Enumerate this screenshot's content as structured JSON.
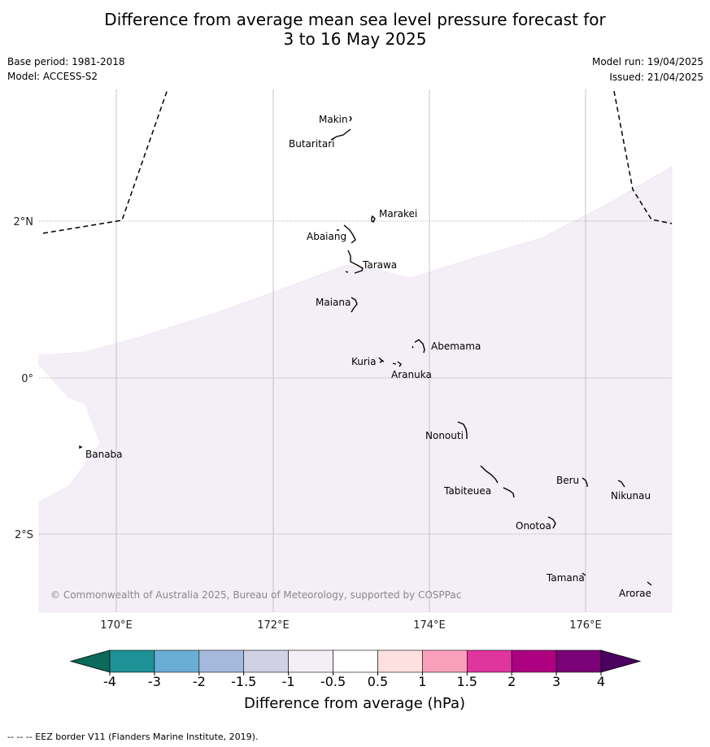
{
  "title_line1": "Difference from average mean sea level pressure forecast for",
  "title_line2": "3 to 16 May 2025",
  "base_period": "Base period: 1981-2018",
  "model": "Model: ACCESS-S2",
  "model_run": "Model run: 19/04/2025",
  "issued": "Issued: 21/04/2025",
  "copyright": "© Commonwealth of Australia 2025, Bureau of Meteorology, supported by COSPPac",
  "eez_note": "--  --  -- EEZ border V11 (Flanders Marine Institute, 2019).",
  "map": {
    "x_ticks": [
      {
        "lon": 170,
        "label": "170°E"
      },
      {
        "lon": 172,
        "label": "172°E"
      },
      {
        "lon": 174,
        "label": "174°E"
      },
      {
        "lon": 176,
        "label": "176°E"
      }
    ],
    "y_ticks": [
      {
        "lat": 2,
        "label": "2°N"
      },
      {
        "lat": 0,
        "label": "0°"
      },
      {
        "lat": -2,
        "label": "2°S"
      }
    ],
    "places": [
      {
        "name": "Makin",
        "label": "Makin"
      },
      {
        "name": "Butaritari",
        "label": "Butaritari"
      },
      {
        "name": "Marakei",
        "label": "Marakei"
      },
      {
        "name": "Abaiang",
        "label": "Abaiang"
      },
      {
        "name": "Tarawa",
        "label": "Tarawa"
      },
      {
        "name": "Maiana",
        "label": "Maiana"
      },
      {
        "name": "Abemama",
        "label": "Abemama"
      },
      {
        "name": "Kuria",
        "label": "Kuria"
      },
      {
        "name": "Aranuka",
        "label": "Aranuka"
      },
      {
        "name": "Nonouti",
        "label": "Nonouti"
      },
      {
        "name": "Banaba",
        "label": "Banaba"
      },
      {
        "name": "Beru",
        "label": "Beru"
      },
      {
        "name": "Tabiteuea",
        "label": "Tabiteuea"
      },
      {
        "name": "Nikunau",
        "label": "Nikunau"
      },
      {
        "name": "Onotoa",
        "label": "Onotoa"
      },
      {
        "name": "Tamana",
        "label": "Tamana"
      },
      {
        "name": "Arorae",
        "label": "Arorae"
      }
    ],
    "shaded_category": "-1 to -0.5 hPa (light lavender)"
  },
  "colorbar": {
    "label": "Difference from average (hPa)",
    "ticks": [
      "-4",
      "-3",
      "-2",
      "-1.5",
      "-1",
      "-0.5",
      "0.5",
      "1",
      "1.5",
      "2",
      "3",
      "4"
    ],
    "low_extend_color": "#0b6a5a",
    "high_extend_color": "#4b0060",
    "colors": [
      "#1d9196",
      "#6aadd5",
      "#a4b9dc",
      "#d1d1e5",
      "#f4eef7",
      "#ffffff",
      "#fde0df",
      "#f9a0bc",
      "#df359d",
      "#ad0181",
      "#7a0177"
    ]
  }
}
